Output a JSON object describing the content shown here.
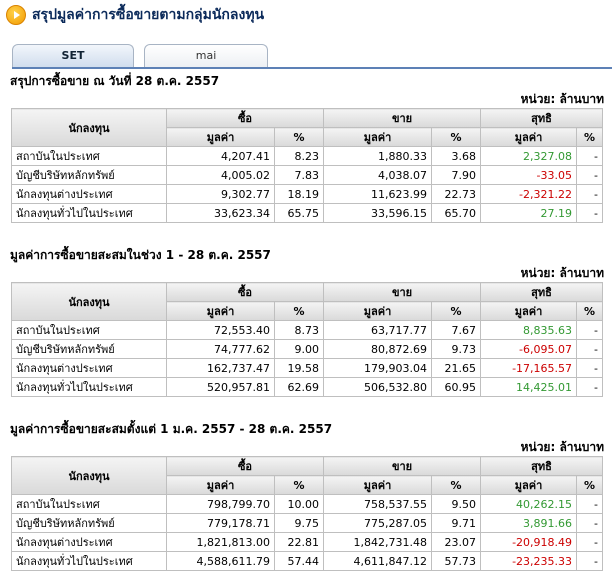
{
  "header": {
    "title": "สรุปมูลค่าการซื้อขายตามกลุ่มนักลงทุน",
    "icon": "arrow-circle-icon"
  },
  "tabs": [
    {
      "label": "SET",
      "active": true
    },
    {
      "label": "mai",
      "active": false
    }
  ],
  "columns": {
    "investor": "นักลงทุน",
    "buy": "ซื้อ",
    "sell": "ขาย",
    "net": "สุทธิ",
    "value": "มูลค่า",
    "pct": "%"
  },
  "sections": [
    {
      "title": "สรุปการซื้อขาย ณ วันที่ 28 ต.ค. 2557",
      "unit": "หน่วย: ล้านบาท",
      "rows": [
        {
          "name": "สถาบันในประเทศ",
          "buy": "4,207.41",
          "buy_pct": "8.23",
          "sell": "1,880.33",
          "sell_pct": "3.68",
          "net": "2,327.08",
          "net_pct": "-",
          "net_sign": "pos"
        },
        {
          "name": "บัญชีบริษัทหลักทรัพย์",
          "buy": "4,005.02",
          "buy_pct": "7.83",
          "sell": "4,038.07",
          "sell_pct": "7.90",
          "net": "-33.05",
          "net_pct": "-",
          "net_sign": "neg"
        },
        {
          "name": "นักลงทุนต่างประเทศ",
          "buy": "9,302.77",
          "buy_pct": "18.19",
          "sell": "11,623.99",
          "sell_pct": "22.73",
          "net": "-2,321.22",
          "net_pct": "-",
          "net_sign": "neg"
        },
        {
          "name": "นักลงทุนทั่วไปในประเทศ",
          "buy": "33,623.34",
          "buy_pct": "65.75",
          "sell": "33,596.15",
          "sell_pct": "65.70",
          "net": "27.19",
          "net_pct": "-",
          "net_sign": "pos"
        }
      ]
    },
    {
      "title": "มูลค่าการซื้อขายสะสมในช่วง 1 - 28 ต.ค. 2557",
      "unit": "หน่วย: ล้านบาท",
      "rows": [
        {
          "name": "สถาบันในประเทศ",
          "buy": "72,553.40",
          "buy_pct": "8.73",
          "sell": "63,717.77",
          "sell_pct": "7.67",
          "net": "8,835.63",
          "net_pct": "-",
          "net_sign": "pos"
        },
        {
          "name": "บัญชีบริษัทหลักทรัพย์",
          "buy": "74,777.62",
          "buy_pct": "9.00",
          "sell": "80,872.69",
          "sell_pct": "9.73",
          "net": "-6,095.07",
          "net_pct": "-",
          "net_sign": "neg"
        },
        {
          "name": "นักลงทุนต่างประเทศ",
          "buy": "162,737.47",
          "buy_pct": "19.58",
          "sell": "179,903.04",
          "sell_pct": "21.65",
          "net": "-17,165.57",
          "net_pct": "-",
          "net_sign": "neg"
        },
        {
          "name": "นักลงทุนทั่วไปในประเทศ",
          "buy": "520,957.81",
          "buy_pct": "62.69",
          "sell": "506,532.80",
          "sell_pct": "60.95",
          "net": "14,425.01",
          "net_pct": "-",
          "net_sign": "pos"
        }
      ]
    },
    {
      "title": "มูลค่าการซื้อขายสะสมตั้งแต่ 1 ม.ค. 2557 - 28 ต.ค. 2557",
      "unit": "หน่วย: ล้านบาท",
      "rows": [
        {
          "name": "สถาบันในประเทศ",
          "buy": "798,799.70",
          "buy_pct": "10.00",
          "sell": "758,537.55",
          "sell_pct": "9.50",
          "net": "40,262.15",
          "net_pct": "-",
          "net_sign": "pos"
        },
        {
          "name": "บัญชีบริษัทหลักทรัพย์",
          "buy": "779,178.71",
          "buy_pct": "9.75",
          "sell": "775,287.05",
          "sell_pct": "9.71",
          "net": "3,891.66",
          "net_pct": "-",
          "net_sign": "pos"
        },
        {
          "name": "นักลงทุนต่างประเทศ",
          "buy": "1,821,813.00",
          "buy_pct": "22.81",
          "sell": "1,842,731.48",
          "sell_pct": "23.07",
          "net": "-20,918.49",
          "net_pct": "-",
          "net_sign": "neg"
        },
        {
          "name": "นักลงทุนทั่วไปในประเทศ",
          "buy": "4,588,611.79",
          "buy_pct": "57.44",
          "sell": "4,611,847.12",
          "sell_pct": "57.73",
          "net": "-23,235.33",
          "net_pct": "-",
          "net_sign": "neg"
        }
      ]
    }
  ],
  "colors": {
    "positive": "#339933",
    "negative": "#cc0000",
    "accent": "#5d81b6"
  }
}
